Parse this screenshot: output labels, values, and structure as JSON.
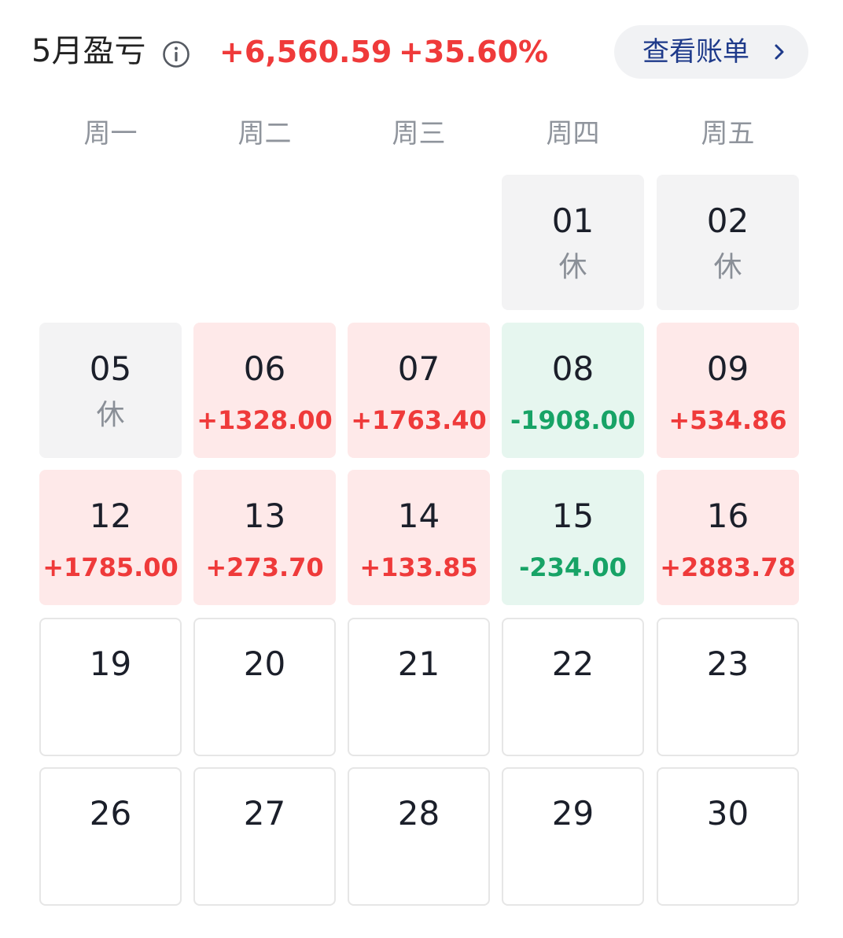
{
  "header": {
    "title": "5月盈亏",
    "pnl_amount": "+6,560.59",
    "pnl_percent": "+35.60%",
    "view_bill_label": "查看账单",
    "info_icon": "info-circle-icon",
    "chevron_icon": "chevron-right-icon"
  },
  "colors": {
    "gain": "#ef3a3a",
    "loss": "#17a366",
    "gain_bg": "#fee9e9",
    "loss_bg": "#e6f6ef",
    "rest_bg": "#f3f3f4",
    "button_text": "#1e3a8a"
  },
  "weekdays": [
    "周一",
    "周二",
    "周三",
    "周四",
    "周五"
  ],
  "weeks": [
    [
      null,
      null,
      null,
      {
        "day": "01",
        "value": "休",
        "type": "rest"
      },
      {
        "day": "02",
        "value": "休",
        "type": "rest"
      }
    ],
    [
      {
        "day": "05",
        "value": "休",
        "type": "rest"
      },
      {
        "day": "06",
        "value": "+1328.00",
        "type": "gain"
      },
      {
        "day": "07",
        "value": "+1763.40",
        "type": "gain"
      },
      {
        "day": "08",
        "value": "-1908.00",
        "type": "loss"
      },
      {
        "day": "09",
        "value": "+534.86",
        "type": "gain"
      }
    ],
    [
      {
        "day": "12",
        "value": "+1785.00",
        "type": "gain"
      },
      {
        "day": "13",
        "value": "+273.70",
        "type": "gain"
      },
      {
        "day": "14",
        "value": "+133.85",
        "type": "gain"
      },
      {
        "day": "15",
        "value": "-234.00",
        "type": "loss"
      },
      {
        "day": "16",
        "value": "+2883.78",
        "type": "gain"
      }
    ],
    [
      {
        "day": "19",
        "value": "",
        "type": "empty"
      },
      {
        "day": "20",
        "value": "",
        "type": "empty"
      },
      {
        "day": "21",
        "value": "",
        "type": "empty"
      },
      {
        "day": "22",
        "value": "",
        "type": "empty"
      },
      {
        "day": "23",
        "value": "",
        "type": "empty"
      }
    ],
    [
      {
        "day": "26",
        "value": "",
        "type": "empty"
      },
      {
        "day": "27",
        "value": "",
        "type": "empty"
      },
      {
        "day": "28",
        "value": "",
        "type": "empty"
      },
      {
        "day": "29",
        "value": "",
        "type": "empty"
      },
      {
        "day": "30",
        "value": "",
        "type": "empty"
      }
    ]
  ]
}
